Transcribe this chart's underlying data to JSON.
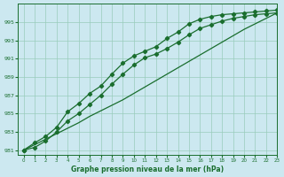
{
  "title": "Graphe pression niveau de la mer (hPa)",
  "background_color": "#cce8f0",
  "grid_color": "#99ccbb",
  "line_color": "#1a6e2e",
  "xlim": [
    -0.5,
    23
  ],
  "ylim": [
    980.5,
    997
  ],
  "yticks": [
    981,
    983,
    985,
    987,
    989,
    991,
    993,
    995
  ],
  "xticks": [
    0,
    1,
    2,
    3,
    4,
    5,
    6,
    7,
    8,
    9,
    10,
    11,
    12,
    13,
    14,
    15,
    16,
    17,
    18,
    19,
    20,
    21,
    22,
    23
  ],
  "series_top": [
    981.0,
    981.8,
    982.5,
    983.5,
    985.2,
    986.1,
    987.2,
    988.0,
    989.3,
    990.5,
    991.3,
    991.8,
    992.3,
    993.2,
    993.9,
    994.8,
    995.3,
    995.6,
    995.8,
    995.9,
    996.0,
    996.1,
    996.2,
    996.3
  ],
  "series_mid": [
    981.0,
    981.3,
    982.0,
    983.0,
    984.2,
    985.0,
    986.0,
    987.0,
    988.2,
    989.3,
    990.3,
    991.1,
    991.5,
    992.1,
    992.8,
    993.6,
    994.3,
    994.7,
    995.1,
    995.4,
    995.6,
    995.8,
    995.9,
    996.0
  ],
  "series_straight": [
    981.0,
    981.6,
    982.2,
    982.8,
    983.4,
    984.0,
    984.7,
    985.3,
    985.9,
    986.5,
    987.2,
    987.9,
    988.6,
    989.3,
    990.0,
    990.7,
    991.4,
    992.1,
    992.8,
    993.5,
    994.2,
    994.8,
    995.4,
    996.0
  ]
}
